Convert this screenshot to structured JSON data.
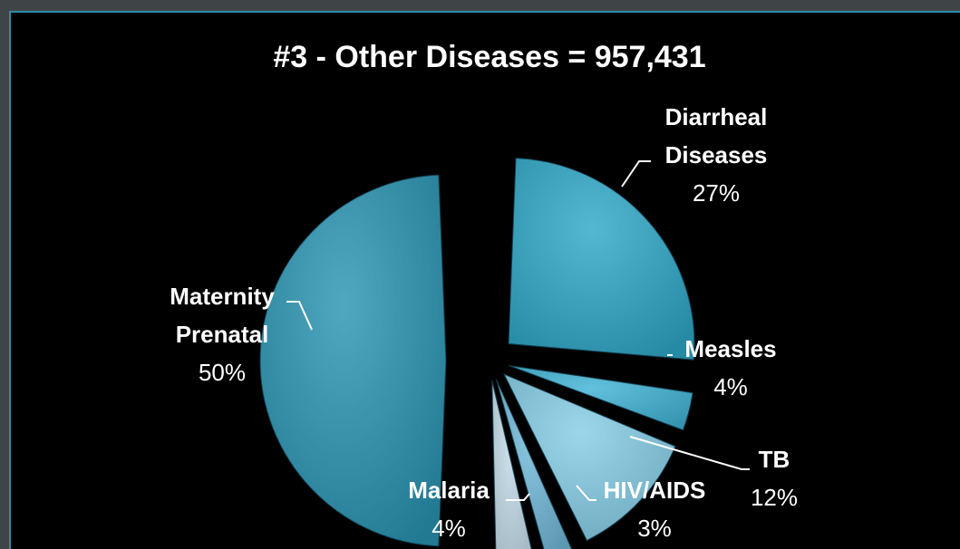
{
  "chart_data": {
    "type": "pie",
    "title": "#3 - Other Diseases = 957,431",
    "exploded": true,
    "slices": [
      {
        "name": "Diarrheal Diseases",
        "lines": [
          "Diarrheal",
          "Diseases"
        ],
        "value": 27,
        "pct_label": "27%",
        "color": "#2ea8c8"
      },
      {
        "name": "Measles",
        "lines": [
          "Measles"
        ],
        "value": 4,
        "pct_label": "4%",
        "color": "#3fb4d6"
      },
      {
        "name": "TB",
        "lines": [
          "TB"
        ],
        "value": 12,
        "pct_label": "12%",
        "color": "#86cde6"
      },
      {
        "name": "HIV/AIDS",
        "lines": [
          "HIV/AIDS"
        ],
        "value": 3,
        "pct_label": "3%",
        "color": "#6fb8d8"
      },
      {
        "name": "Malaria",
        "lines": [
          "Malaria"
        ],
        "value": 4,
        "pct_label": "4%",
        "color": "#c3dce8"
      },
      {
        "name": "Maternity Prenatal",
        "lines": [
          "Maternity",
          "Prenatal"
        ],
        "value": 50,
        "pct_label": "50%",
        "color": "#2994b2"
      }
    ]
  }
}
